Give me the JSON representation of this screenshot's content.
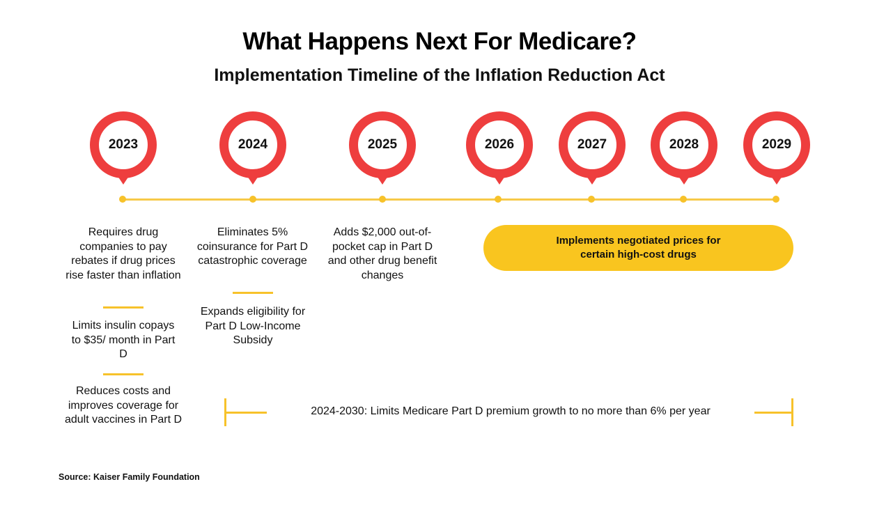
{
  "header": {
    "title": "What Happens Next For Medicare?",
    "subtitle": "Implementation Timeline of the Inflation Reduction Act"
  },
  "colors": {
    "pin_red": "#ee3e3e",
    "timeline_yellow": "#f7c22a",
    "pill_yellow": "#f9c51f"
  },
  "timeline": {
    "years": [
      "2023",
      "2024",
      "2025",
      "2026",
      "2027",
      "2028",
      "2029"
    ]
  },
  "events": {
    "y2023": {
      "item1": "Requires drug companies to pay rebates if drug prices rise faster than inflation",
      "item2": "Limits insulin copays to $35/ month in Part D",
      "item3": "Reduces costs and improves coverage for adult vaccines in Part D"
    },
    "y2024": {
      "item1": "Eliminates 5% coinsurance for Part D catastrophic coverage",
      "item2": "Expands eligibility for Part D Low-Income Subsidy"
    },
    "y2025": {
      "item1": "Adds $2,000 out-of-pocket cap in Part D and other drug benefit changes"
    },
    "y2026_onward": "Implements negotiated prices for certain high-cost drugs"
  },
  "range": {
    "label": "2024-2030: Limits Medicare Part D premium growth to no more than 6% per year"
  },
  "footer": {
    "source": "Source: Kaiser Family Foundation"
  }
}
